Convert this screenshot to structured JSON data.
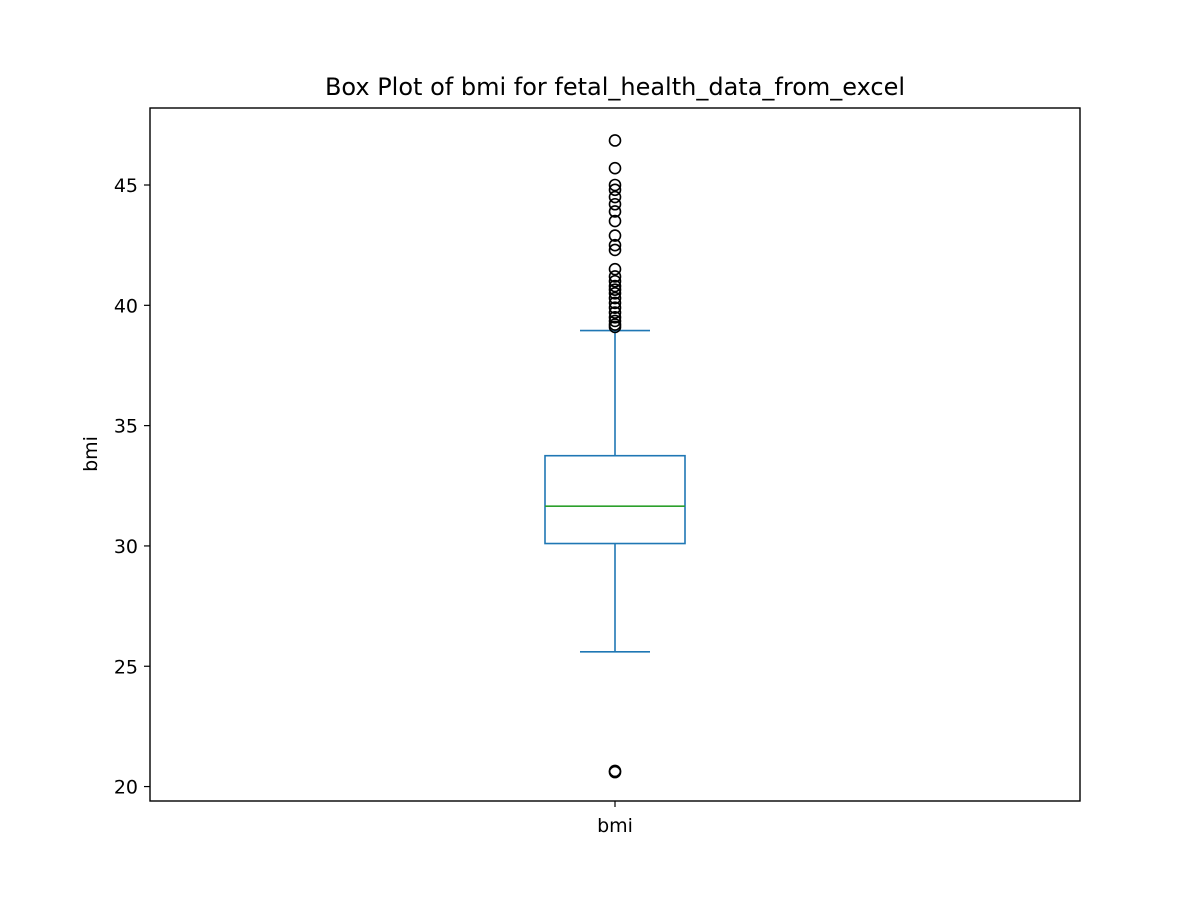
{
  "chart_data": {
    "type": "box",
    "title": "Box Plot of bmi for fetal_health_data_from_excel",
    "xlabel": "",
    "ylabel": "bmi",
    "categories": [
      "bmi"
    ],
    "ylim": [
      19.4,
      48.2
    ],
    "yticks": [
      20,
      25,
      30,
      35,
      40,
      45
    ],
    "grid": false,
    "legend": "none",
    "boxes": [
      {
        "category": "bmi",
        "whisker_low": 25.6,
        "q1": 30.1,
        "median": 31.65,
        "q3": 33.75,
        "whisker_high": 38.95,
        "outliers": [
          20.6,
          20.65,
          39.1,
          39.2,
          39.35,
          39.5,
          39.7,
          39.9,
          40.1,
          40.3,
          40.5,
          40.65,
          40.8,
          41.0,
          41.2,
          41.5,
          42.3,
          42.5,
          42.9,
          43.5,
          43.9,
          44.2,
          44.5,
          44.8,
          45.0,
          45.7,
          46.85
        ]
      }
    ],
    "colors": {
      "box": "#1f77b4",
      "median": "#2ca02c",
      "outlier": "#000000",
      "axes": "#000000"
    }
  }
}
